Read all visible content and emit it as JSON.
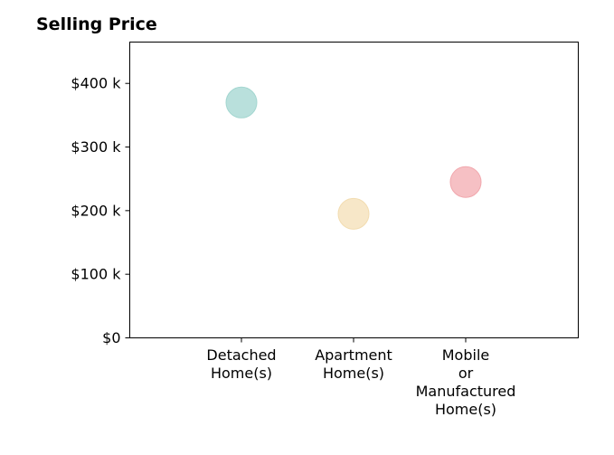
{
  "chart_data": {
    "type": "scatter",
    "title": "Selling Price",
    "xlabel": "",
    "ylabel": "",
    "categories": [
      "Detached Home(s)",
      "Apartment Home(s)",
      "Mobile or Manufactured Home(s)"
    ],
    "category_label_lines": [
      [
        "Detached",
        "Home(s)"
      ],
      [
        "Apartment",
        "Home(s)"
      ],
      [
        "Mobile",
        "or",
        "Manufactured",
        "Home(s)"
      ]
    ],
    "values": [
      370000,
      195000,
      245000
    ],
    "colors": [
      "#b9e0dc",
      "#f7e7c8",
      "#f6c0c4"
    ],
    "edge_colors": [
      "#a3d6d0",
      "#f2dcb0",
      "#f1a7ad"
    ],
    "ylim": [
      0,
      465000
    ],
    "yticks": [
      0,
      100000,
      200000,
      300000,
      400000
    ],
    "ytick_labels": [
      "$0",
      "$100 k",
      "$200 k",
      "$300 k",
      "$400 k"
    ],
    "grid": false,
    "legend": "none"
  }
}
